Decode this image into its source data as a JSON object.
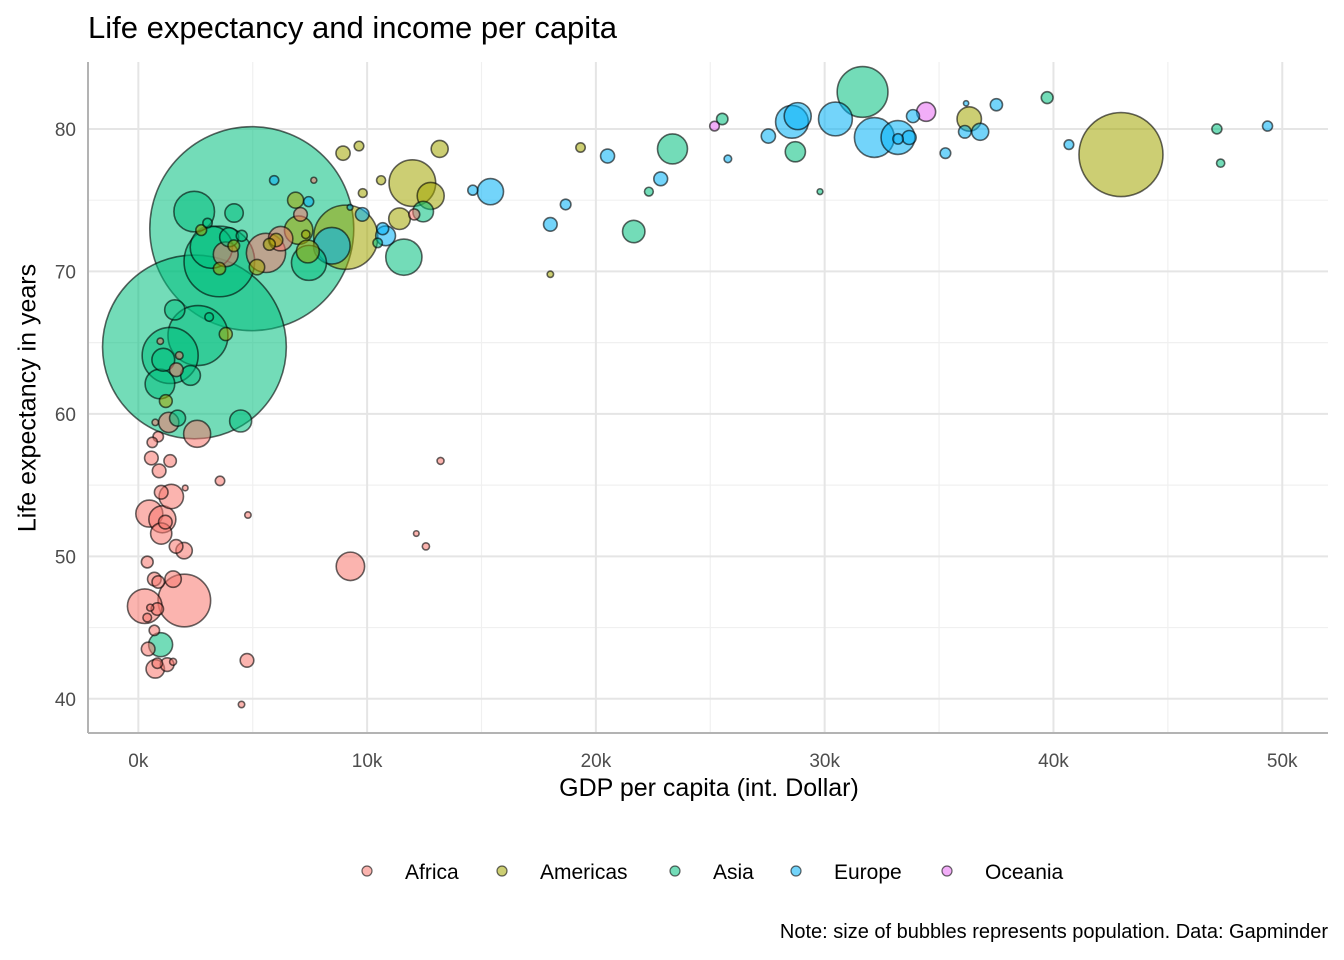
{
  "chart_data": {
    "type": "scatter",
    "title": "Life expectancy and income per capita",
    "xlabel": "GDP per capita (int. Dollar)",
    "ylabel": "Life expectancy in years",
    "caption": "Note: size of bubbles represents population. Data: Gapminder",
    "xlim": [
      -2200,
      52000
    ],
    "ylim": [
      37.6,
      84.7
    ],
    "x_ticks": [
      0,
      10000,
      20000,
      30000,
      40000,
      50000
    ],
    "x_tick_labels": [
      "0k",
      "10k",
      "20k",
      "30k",
      "40k",
      "50k"
    ],
    "y_ticks": [
      40,
      50,
      60,
      70,
      80
    ],
    "y_tick_labels": [
      "40",
      "50",
      "60",
      "70",
      "80"
    ],
    "grid": true,
    "legend_position": "bottom",
    "size_variable": "population (millions)",
    "point_fields": [
      "gdp_per_capita",
      "life_expectancy",
      "population_millions"
    ],
    "series": [
      {
        "name": "Africa",
        "color": "#F8766D",
        "points": [
          [
            1330,
            59.4,
            23
          ],
          [
            740,
            59.4,
            1
          ],
          [
            2570,
            58.6,
            40
          ],
          [
            870,
            58.4,
            5
          ],
          [
            610,
            58.0,
            5
          ],
          [
            570,
            56.9,
            10
          ],
          [
            1390,
            56.7,
            8
          ],
          [
            910,
            56.0,
            10
          ],
          [
            3570,
            55.3,
            4
          ],
          [
            1000,
            54.5,
            10
          ],
          [
            1440,
            54.2,
            33
          ],
          [
            2050,
            54.8,
            0.5
          ],
          [
            480,
            53.0,
            40
          ],
          [
            1050,
            52.6,
            40
          ],
          [
            1180,
            52.4,
            10
          ],
          [
            1000,
            51.6,
            25
          ],
          [
            4790,
            52.9,
            1
          ],
          [
            1650,
            50.7,
            10
          ],
          [
            2000,
            50.4,
            15
          ],
          [
            390,
            49.6,
            7
          ],
          [
            9270,
            49.3,
            44
          ],
          [
            700,
            48.4,
            10
          ],
          [
            870,
            48.2,
            8
          ],
          [
            1520,
            48.4,
            15
          ],
          [
            280,
            46.5,
            64
          ],
          [
            2010,
            46.9,
            135
          ],
          [
            830,
            46.3,
            8
          ],
          [
            520,
            46.4,
            1.5
          ],
          [
            390,
            45.7,
            3
          ],
          [
            700,
            44.8,
            5
          ],
          [
            430,
            43.5,
            10
          ],
          [
            830,
            42.5,
            5
          ],
          [
            1260,
            42.4,
            10
          ],
          [
            1520,
            42.6,
            1.5
          ],
          [
            740,
            42.1,
            19
          ],
          [
            4750,
            42.7,
            10
          ],
          [
            4510,
            39.6,
            1
          ],
          [
            12060,
            74.0,
            6
          ],
          [
            7670,
            76.4,
            0.8
          ],
          [
            7090,
            74.0,
            10
          ],
          [
            6220,
            72.3,
            33
          ],
          [
            5580,
            71.3,
            80
          ],
          [
            3820,
            71.2,
            34
          ],
          [
            13210,
            56.7,
            1.5
          ],
          [
            12150,
            51.6,
            0.6
          ],
          [
            12570,
            50.7,
            1.6
          ],
          [
            1660,
            63.1,
            10
          ],
          [
            1790,
            64.1,
            2
          ],
          [
            960,
            65.1,
            1
          ]
        ]
      },
      {
        "name": "Americas",
        "color": "#A3A500",
        "points": [
          [
            42951,
            78.2,
            301
          ],
          [
            9066,
            72.4,
            190
          ],
          [
            11978,
            76.2,
            109
          ],
          [
            7007,
            72.9,
            44
          ],
          [
            12779,
            75.3,
            40
          ],
          [
            36319,
            80.7,
            33
          ],
          [
            7409,
            71.4,
            29
          ],
          [
            11416,
            73.7,
            26
          ],
          [
            13172,
            78.6,
            16
          ],
          [
            6873,
            75.0,
            14
          ],
          [
            5186,
            70.3,
            13
          ],
          [
            8948,
            78.3,
            11
          ],
          [
            3822,
            65.6,
            9
          ],
          [
            1202,
            60.9,
            8.5
          ],
          [
            6025,
            72.2,
            9.3
          ],
          [
            3548,
            70.2,
            7.5
          ],
          [
            5728,
            71.9,
            6.9
          ],
          [
            4173,
            71.8,
            6.7
          ],
          [
            2749,
            72.9,
            5.7
          ],
          [
            9645,
            78.8,
            4.1
          ],
          [
            19329,
            78.7,
            4
          ],
          [
            10611,
            76.4,
            3.4
          ],
          [
            9809,
            75.5,
            3.2
          ],
          [
            7321,
            72.6,
            2.8
          ],
          [
            18009,
            69.8,
            1.1
          ]
        ]
      },
      {
        "name": "Asia",
        "color": "#00BF7D",
        "points": [
          [
            4959,
            73.0,
            1318
          ],
          [
            2452,
            64.7,
            1110
          ],
          [
            3541,
            70.7,
            224
          ],
          [
            2606,
            65.5,
            169
          ],
          [
            1391,
            64.1,
            150
          ],
          [
            31656,
            82.6,
            127
          ],
          [
            3190,
            71.7,
            91
          ],
          [
            2442,
            74.2,
            85
          ],
          [
            11606,
            71.0,
            69
          ],
          [
            7458,
            70.6,
            65
          ],
          [
            944,
            62.1,
            48
          ],
          [
            23348,
            78.6,
            49
          ],
          [
            974,
            43.8,
            32
          ],
          [
            1091,
            63.8,
            29
          ],
          [
            4471,
            59.5,
            27
          ],
          [
            12451,
            74.2,
            24
          ],
          [
            1593,
            67.3,
            23
          ],
          [
            28718,
            78.4,
            23
          ],
          [
            21654,
            72.8,
            28
          ],
          [
            2281,
            62.7,
            22
          ],
          [
            3970,
            72.4,
            20
          ],
          [
            4185,
            74.1,
            19
          ],
          [
            1714,
            59.7,
            14
          ],
          [
            39725,
            82.2,
            7
          ],
          [
            25523,
            80.7,
            6.4
          ],
          [
            4519,
            72.5,
            6
          ],
          [
            10461,
            72.0,
            4
          ],
          [
            47143,
            80.0,
            4.5
          ],
          [
            47307,
            77.6,
            2.5
          ],
          [
            22316,
            75.6,
            3.2
          ],
          [
            3096,
            66.8,
            2.9
          ],
          [
            3025,
            73.4,
            4
          ],
          [
            29796,
            75.6,
            0.7
          ]
        ]
      },
      {
        "name": "Europe",
        "color": "#00B0F6",
        "points": [
          [
            32170,
            79.4,
            82
          ],
          [
            8458,
            71.8,
            71
          ],
          [
            30470,
            80.7,
            61
          ],
          [
            33203,
            79.4,
            61
          ],
          [
            28570,
            80.5,
            58
          ],
          [
            28821,
            80.9,
            40
          ],
          [
            15390,
            75.6,
            38
          ],
          [
            10808,
            72.5,
            22
          ],
          [
            36798,
            79.8,
            16
          ],
          [
            27538,
            79.5,
            10.7
          ],
          [
            20510,
            78.1,
            10.6
          ],
          [
            33692,
            79.4,
            10.4
          ],
          [
            22833,
            76.5,
            10.2
          ],
          [
            18009,
            73.3,
            10
          ],
          [
            33860,
            80.9,
            9
          ],
          [
            36126,
            79.8,
            8.2
          ],
          [
            10681,
            73.0,
            7.3
          ],
          [
            37506,
            81.7,
            7.6
          ],
          [
            9787,
            74.0,
            10
          ],
          [
            35278,
            78.3,
            5.5
          ],
          [
            18678,
            74.7,
            5.4
          ],
          [
            33207,
            79.3,
            5.2
          ],
          [
            49357,
            80.2,
            4.6
          ],
          [
            40676,
            78.9,
            4.1
          ],
          [
            14619,
            75.7,
            4.5
          ],
          [
            7446,
            74.9,
            4.6
          ],
          [
            5937,
            76.4,
            3.6
          ],
          [
            25768,
            77.9,
            2
          ],
          [
            9254,
            74.5,
            0.7
          ],
          [
            36181,
            81.8,
            0.3
          ]
        ]
      },
      {
        "name": "Oceania",
        "color": "#E76BF3",
        "points": [
          [
            34435,
            81.2,
            20.4
          ],
          [
            25185,
            80.2,
            4.1
          ]
        ]
      }
    ]
  }
}
